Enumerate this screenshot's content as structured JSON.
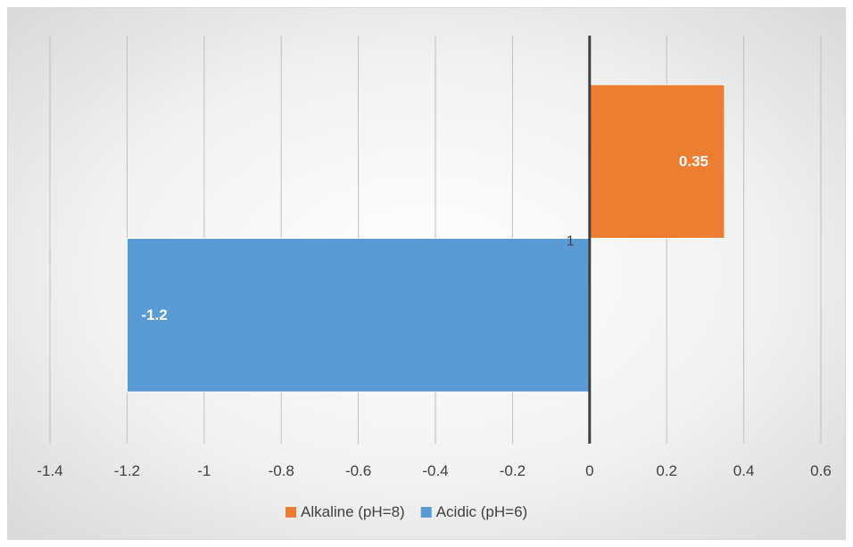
{
  "chart_data": {
    "type": "bar",
    "orientation": "horizontal",
    "categories": [
      "1"
    ],
    "series": [
      {
        "name": "Alkaline (pH=8)",
        "values": [
          0.35
        ],
        "color": "#ed7d31"
      },
      {
        "name": "Acidic (pH=6)",
        "values": [
          -1.2
        ],
        "color": "#5b9bd5"
      }
    ],
    "xlim": [
      -1.4,
      0.6
    ],
    "xticks": [
      -1.4,
      -1.2,
      -1,
      -0.8,
      -0.6,
      -0.4,
      -0.2,
      0,
      0.2,
      0.4,
      0.6
    ],
    "xtick_labels": [
      "-1.4",
      "-1.2",
      "-1",
      "-0.8",
      "-0.6",
      "-0.4",
      "-0.2",
      "0",
      "0.2",
      "0.4",
      "0.6"
    ],
    "data_labels": [
      "0.35",
      "-1.2"
    ],
    "grid": true,
    "legend_position": "bottom",
    "title": "",
    "xlabel": "",
    "ylabel": ""
  }
}
